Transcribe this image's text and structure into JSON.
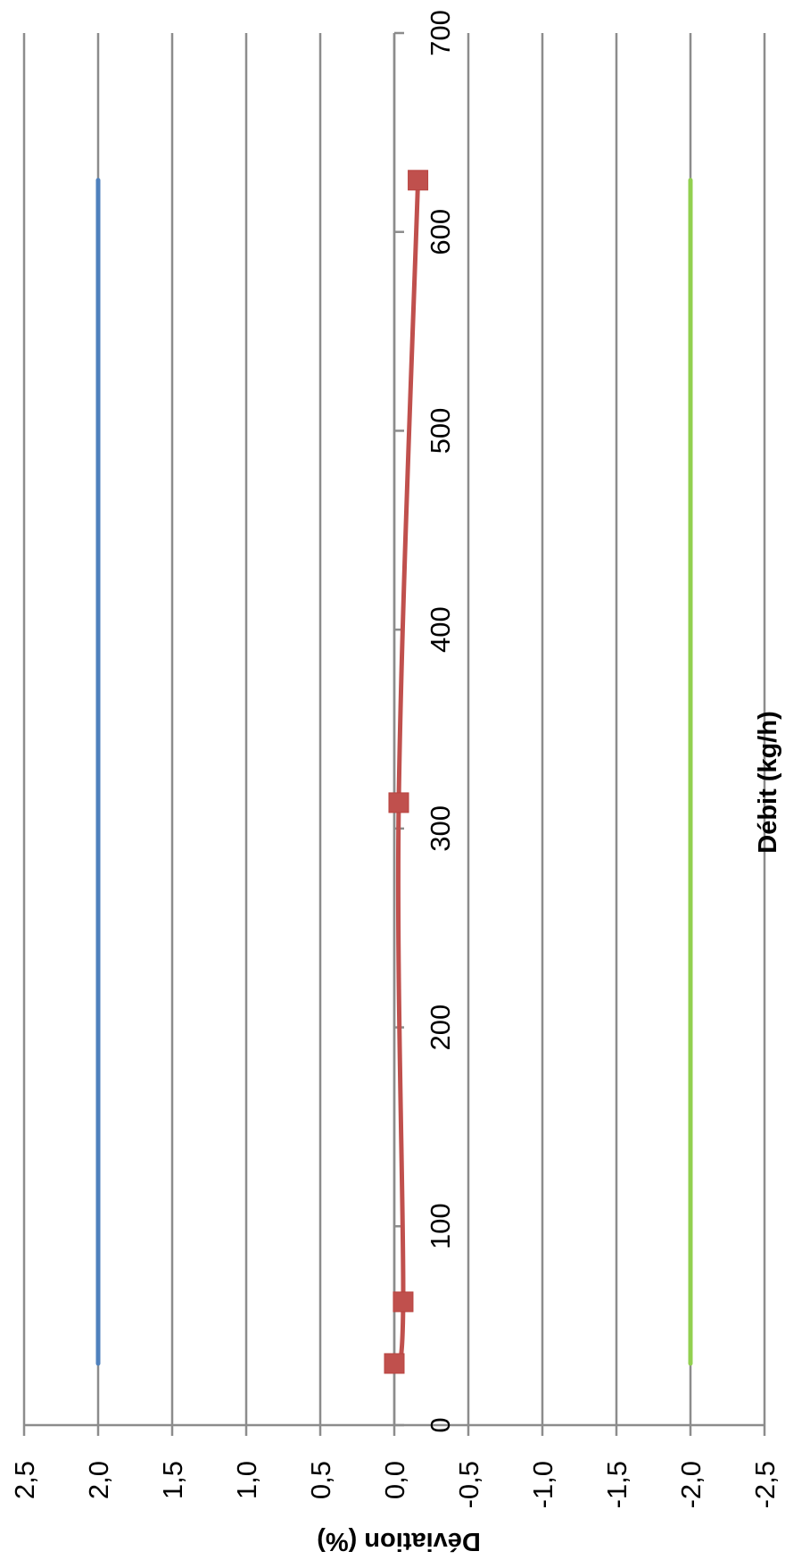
{
  "chart_data": {
    "type": "line",
    "xlabel": "Débit (kg/h)",
    "ylabel": "Déviation (%)",
    "xlim": [
      0,
      700
    ],
    "ylim": [
      -2.5,
      2.5
    ],
    "x_ticks": [
      0,
      100,
      200,
      300,
      400,
      500,
      600,
      700
    ],
    "x_tick_labels": [
      "0",
      "100",
      "200",
      "300",
      "400",
      "500",
      "600",
      "700"
    ],
    "y_ticks": [
      2.5,
      2.0,
      1.5,
      1.0,
      0.5,
      0.0,
      -0.5,
      -1.0,
      -1.5,
      -2.0,
      -2.5
    ],
    "y_tick_labels": [
      "2,5",
      "2,0",
      "1,5",
      "1,0",
      "0,5",
      "0,0",
      "-0,5",
      "-1,0",
      "-1,5",
      "-2,0",
      "-2,5"
    ],
    "grid": true,
    "orientation": "rotated 90° clockwise",
    "series": [
      {
        "color": "#4f81bd",
        "marker": "none",
        "x": [
          31,
          626
        ],
        "y": [
          2.0,
          2.0
        ]
      },
      {
        "color": "#c0504d",
        "marker": "square",
        "x": [
          31,
          62,
          313,
          626
        ],
        "y": [
          0.0,
          -0.06,
          -0.03,
          -0.16
        ]
      },
      {
        "color": "#92d050",
        "marker": "none",
        "x": [
          31,
          626
        ],
        "y": [
          -2.0,
          -2.0
        ]
      }
    ]
  }
}
